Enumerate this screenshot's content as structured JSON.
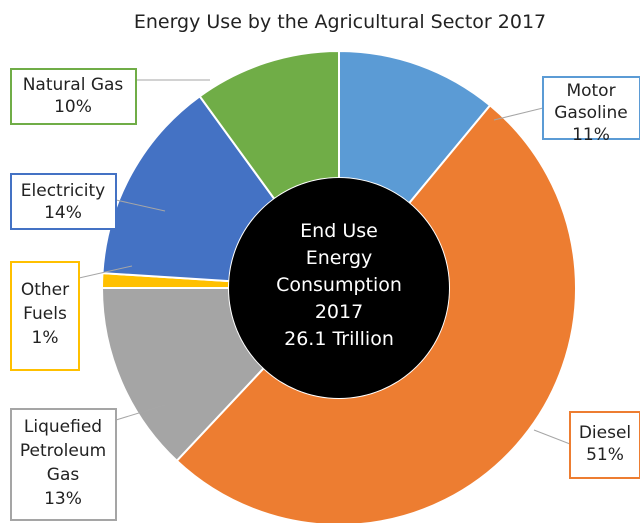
{
  "chart_data": {
    "type": "donut",
    "title": "Energy Use by the Agricultural Sector 2017",
    "center_lines": [
      "End Use",
      "Energy",
      "Consumption",
      "2017",
      "26.1 Trillion"
    ],
    "slices": [
      {
        "lines": [
          "Motor",
          "Gasoline",
          "11%"
        ],
        "value": 11,
        "color": "#5b9bd5"
      },
      {
        "lines": [
          "Diesel",
          "51%"
        ],
        "value": 51,
        "color": "#ed7d31"
      },
      {
        "lines": [
          "Liquefied",
          "Petroleum",
          "Gas",
          "13%"
        ],
        "value": 13,
        "color": "#a5a5a5"
      },
      {
        "lines": [
          "Other",
          "Fuels",
          "1%"
        ],
        "value": 1,
        "color": "#ffc000"
      },
      {
        "lines": [
          "Electricity",
          "14%"
        ],
        "value": 14,
        "color": "#4472c4"
      },
      {
        "lines": [
          "Natural Gas",
          "10%"
        ],
        "value": 10,
        "color": "#70ad47"
      }
    ]
  }
}
